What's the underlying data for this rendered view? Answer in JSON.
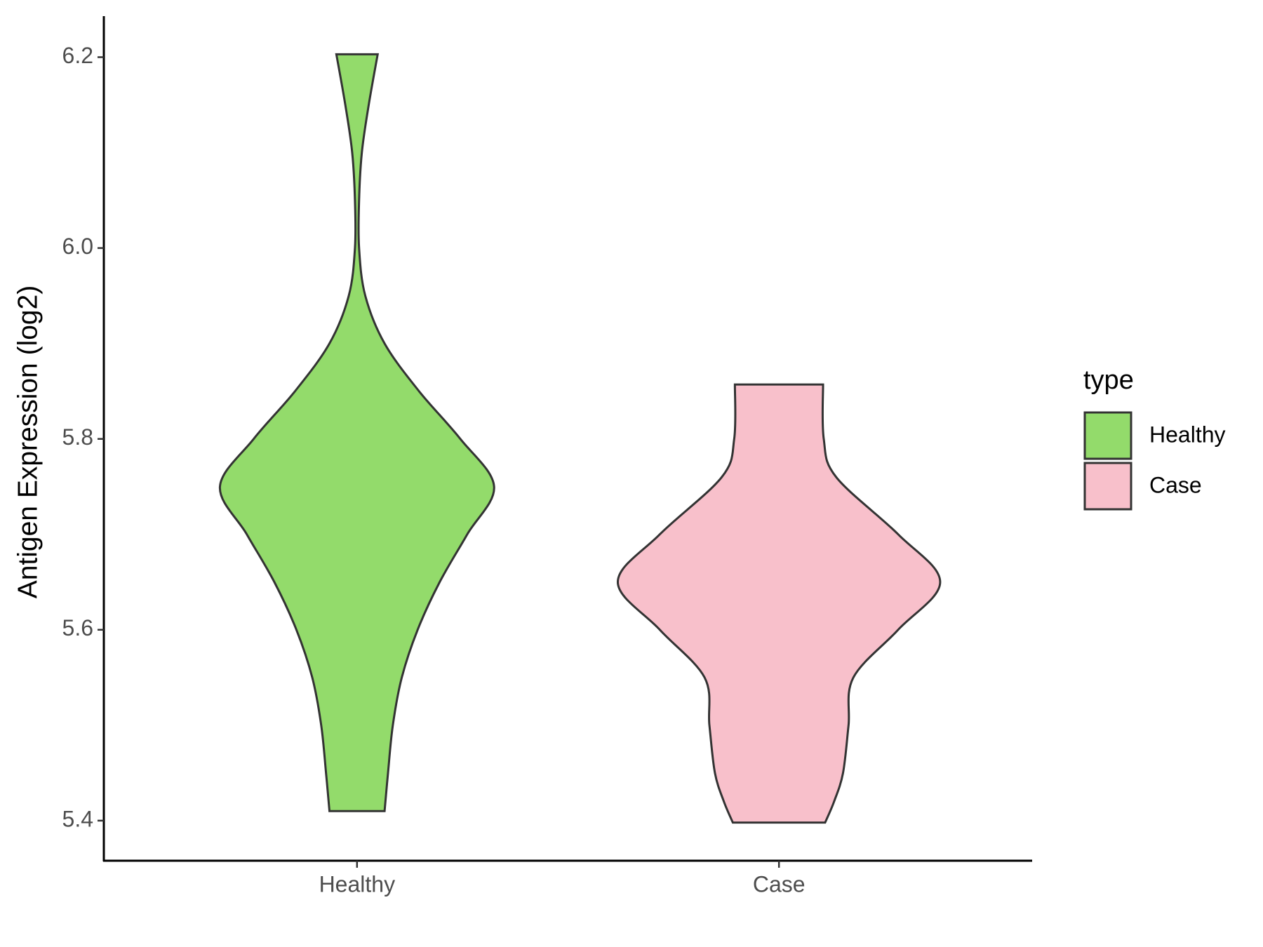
{
  "chart_data": {
    "type": "violin",
    "y_label": "Antigen Expression (log2)",
    "categories": [
      "Healthy",
      "Case"
    ],
    "ylim": [
      5.358,
      6.243
    ],
    "yticks": [
      {
        "value": 5.4,
        "label": "5.4"
      },
      {
        "value": 5.6,
        "label": "5.6"
      },
      {
        "value": 5.8,
        "label": "5.8"
      },
      {
        "value": 6.0,
        "label": "6.0"
      },
      {
        "value": 6.2,
        "label": "6.2"
      }
    ],
    "legend_title": "type",
    "series": [
      {
        "name": "Healthy",
        "color": "#93DB6B",
        "y": [
          6.203,
          6.15,
          6.1,
          6.05,
          6.0,
          5.95,
          5.9,
          5.85,
          5.8,
          5.75,
          5.7,
          5.65,
          5.6,
          5.55,
          5.5,
          5.45,
          5.41
        ],
        "width": [
          30,
          17,
          7,
          3,
          3,
          12,
          40,
          90,
          150,
          199,
          160,
          120,
          88,
          65,
          52,
          45,
          40
        ]
      },
      {
        "name": "Case",
        "color": "#F8C0CB",
        "y": [
          5.857,
          5.8,
          5.76,
          5.7,
          5.65,
          5.6,
          5.55,
          5.5,
          5.45,
          5.42,
          5.398
        ],
        "width": [
          64,
          65,
          83,
          173,
          234,
          173,
          108,
          101,
          93,
          80,
          67
        ]
      }
    ]
  }
}
